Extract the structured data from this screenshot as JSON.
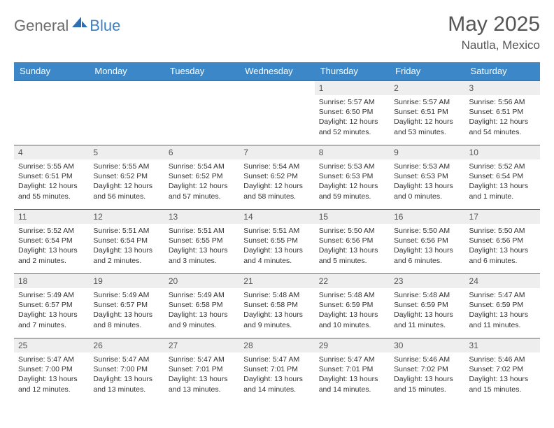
{
  "brand": {
    "text1": "General",
    "text2": "Blue"
  },
  "title": "May 2025",
  "location": "Nautla, Mexico",
  "colors": {
    "header_bg": "#3b87c8",
    "header_text": "#ffffff",
    "daynum_bg": "#eeeeee",
    "row_divider": "#3b6fa0",
    "brand_gray": "#6b6b6b",
    "brand_blue": "#3b7fc4",
    "body_text": "#333333",
    "title_text": "#555555"
  },
  "weekdays": [
    "Sunday",
    "Monday",
    "Tuesday",
    "Wednesday",
    "Thursday",
    "Friday",
    "Saturday"
  ],
  "weeks": [
    [
      null,
      null,
      null,
      null,
      {
        "n": "1",
        "sr": "5:57 AM",
        "ss": "6:50 PM",
        "dl": "12 hours and 52 minutes."
      },
      {
        "n": "2",
        "sr": "5:57 AM",
        "ss": "6:51 PM",
        "dl": "12 hours and 53 minutes."
      },
      {
        "n": "3",
        "sr": "5:56 AM",
        "ss": "6:51 PM",
        "dl": "12 hours and 54 minutes."
      }
    ],
    [
      {
        "n": "4",
        "sr": "5:55 AM",
        "ss": "6:51 PM",
        "dl": "12 hours and 55 minutes."
      },
      {
        "n": "5",
        "sr": "5:55 AM",
        "ss": "6:52 PM",
        "dl": "12 hours and 56 minutes."
      },
      {
        "n": "6",
        "sr": "5:54 AM",
        "ss": "6:52 PM",
        "dl": "12 hours and 57 minutes."
      },
      {
        "n": "7",
        "sr": "5:54 AM",
        "ss": "6:52 PM",
        "dl": "12 hours and 58 minutes."
      },
      {
        "n": "8",
        "sr": "5:53 AM",
        "ss": "6:53 PM",
        "dl": "12 hours and 59 minutes."
      },
      {
        "n": "9",
        "sr": "5:53 AM",
        "ss": "6:53 PM",
        "dl": "13 hours and 0 minutes."
      },
      {
        "n": "10",
        "sr": "5:52 AM",
        "ss": "6:54 PM",
        "dl": "13 hours and 1 minute."
      }
    ],
    [
      {
        "n": "11",
        "sr": "5:52 AM",
        "ss": "6:54 PM",
        "dl": "13 hours and 2 minutes."
      },
      {
        "n": "12",
        "sr": "5:51 AM",
        "ss": "6:54 PM",
        "dl": "13 hours and 2 minutes."
      },
      {
        "n": "13",
        "sr": "5:51 AM",
        "ss": "6:55 PM",
        "dl": "13 hours and 3 minutes."
      },
      {
        "n": "14",
        "sr": "5:51 AM",
        "ss": "6:55 PM",
        "dl": "13 hours and 4 minutes."
      },
      {
        "n": "15",
        "sr": "5:50 AM",
        "ss": "6:56 PM",
        "dl": "13 hours and 5 minutes."
      },
      {
        "n": "16",
        "sr": "5:50 AM",
        "ss": "6:56 PM",
        "dl": "13 hours and 6 minutes."
      },
      {
        "n": "17",
        "sr": "5:50 AM",
        "ss": "6:56 PM",
        "dl": "13 hours and 6 minutes."
      }
    ],
    [
      {
        "n": "18",
        "sr": "5:49 AM",
        "ss": "6:57 PM",
        "dl": "13 hours and 7 minutes."
      },
      {
        "n": "19",
        "sr": "5:49 AM",
        "ss": "6:57 PM",
        "dl": "13 hours and 8 minutes."
      },
      {
        "n": "20",
        "sr": "5:49 AM",
        "ss": "6:58 PM",
        "dl": "13 hours and 9 minutes."
      },
      {
        "n": "21",
        "sr": "5:48 AM",
        "ss": "6:58 PM",
        "dl": "13 hours and 9 minutes."
      },
      {
        "n": "22",
        "sr": "5:48 AM",
        "ss": "6:59 PM",
        "dl": "13 hours and 10 minutes."
      },
      {
        "n": "23",
        "sr": "5:48 AM",
        "ss": "6:59 PM",
        "dl": "13 hours and 11 minutes."
      },
      {
        "n": "24",
        "sr": "5:47 AM",
        "ss": "6:59 PM",
        "dl": "13 hours and 11 minutes."
      }
    ],
    [
      {
        "n": "25",
        "sr": "5:47 AM",
        "ss": "7:00 PM",
        "dl": "13 hours and 12 minutes."
      },
      {
        "n": "26",
        "sr": "5:47 AM",
        "ss": "7:00 PM",
        "dl": "13 hours and 13 minutes."
      },
      {
        "n": "27",
        "sr": "5:47 AM",
        "ss": "7:01 PM",
        "dl": "13 hours and 13 minutes."
      },
      {
        "n": "28",
        "sr": "5:47 AM",
        "ss": "7:01 PM",
        "dl": "13 hours and 14 minutes."
      },
      {
        "n": "29",
        "sr": "5:47 AM",
        "ss": "7:01 PM",
        "dl": "13 hours and 14 minutes."
      },
      {
        "n": "30",
        "sr": "5:46 AM",
        "ss": "7:02 PM",
        "dl": "13 hours and 15 minutes."
      },
      {
        "n": "31",
        "sr": "5:46 AM",
        "ss": "7:02 PM",
        "dl": "13 hours and 15 minutes."
      }
    ]
  ],
  "labels": {
    "sunrise": "Sunrise:",
    "sunset": "Sunset:",
    "daylight": "Daylight:"
  }
}
